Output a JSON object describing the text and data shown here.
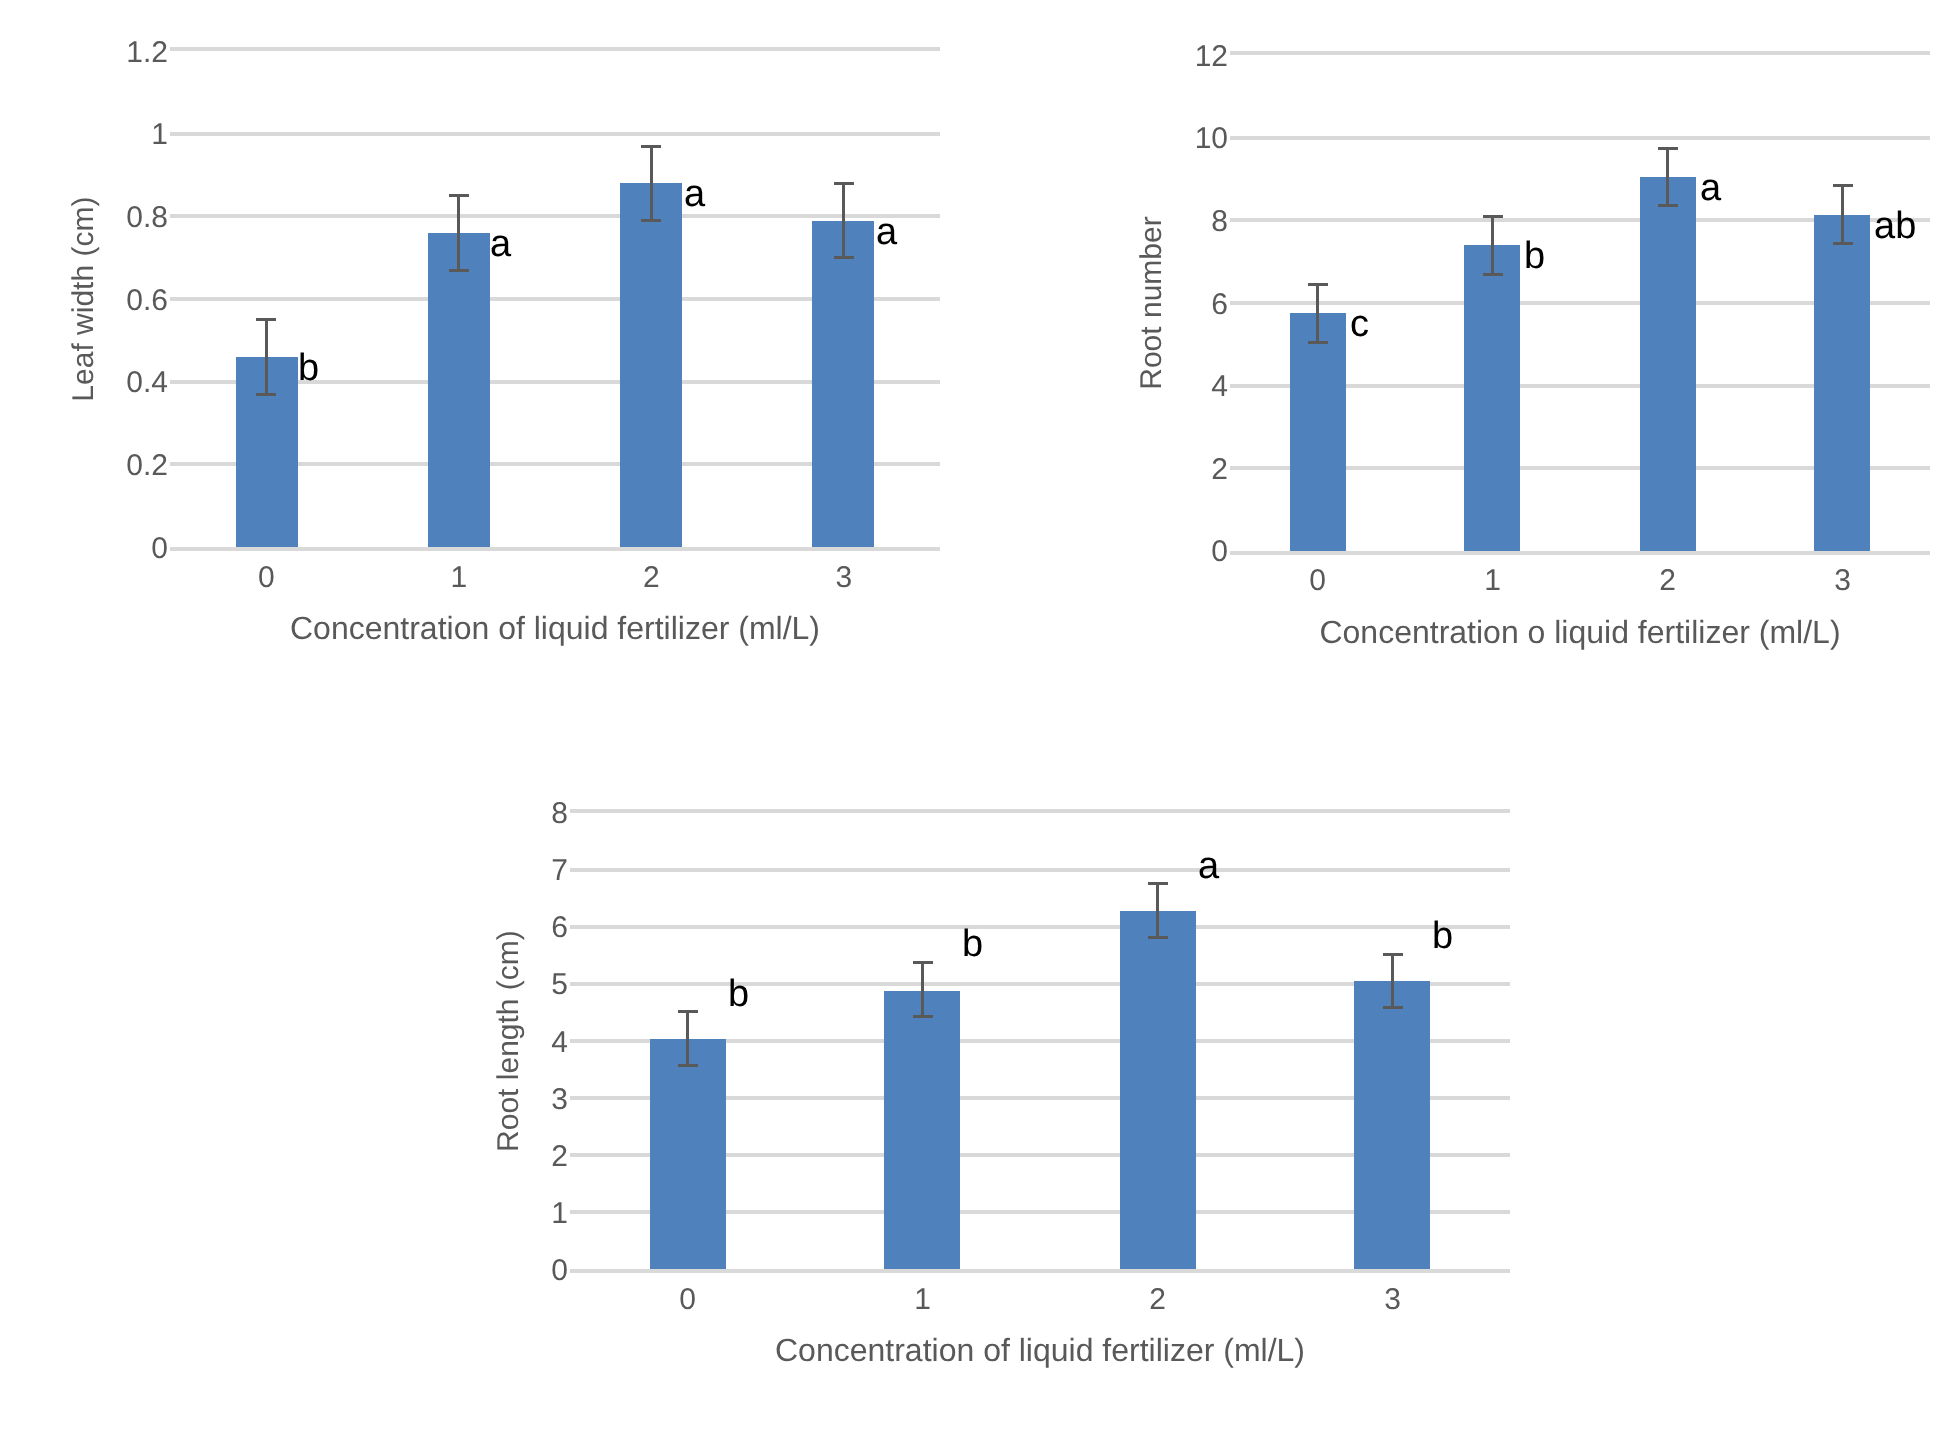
{
  "chart_data": [
    {
      "type": "bar",
      "xlabel": "Concentration of liquid fertilizer (ml/L)",
      "ylabel": "Leaf width (cm)",
      "categories": [
        "0",
        "1",
        "2",
        "3"
      ],
      "series": [
        {
          "color": "#4f81bd",
          "values": [
            0.46,
            0.76,
            0.88,
            0.79
          ],
          "errors": [
            0.09,
            0.09,
            0.09,
            0.09
          ]
        }
      ],
      "ylim": [
        0,
        1.2
      ],
      "yticks": [
        0,
        0.2,
        0.4,
        0.6,
        0.8,
        1,
        1.2
      ],
      "grid": "y",
      "annotations": [
        {
          "text": "b",
          "x": "0",
          "y": 0.46
        },
        {
          "text": "a",
          "x": "1",
          "y": 0.76
        },
        {
          "text": "a",
          "x": "2",
          "y": 0.88
        },
        {
          "text": "a",
          "x": "3",
          "y": 0.79
        }
      ]
    },
    {
      "type": "bar",
      "xlabel": "Concentration o liquid fertilizer (ml/L)",
      "ylabel": "Root number",
      "categories": [
        "0",
        "1",
        "2",
        "3"
      ],
      "series": [
        {
          "color": "#4f81bd",
          "values": [
            5.75,
            7.4,
            9.05,
            8.15
          ],
          "errors": [
            0.7,
            0.7,
            0.7,
            0.7
          ]
        }
      ],
      "ylim": [
        0,
        12
      ],
      "yticks": [
        0,
        2,
        4,
        6,
        8,
        10,
        12
      ],
      "grid": "y",
      "annotations": [
        {
          "text": "c",
          "x": "0",
          "y": 5.75
        },
        {
          "text": "b",
          "x": "1",
          "y": 7.4
        },
        {
          "text": "a",
          "x": "2",
          "y": 9.05
        },
        {
          "text": "ab",
          "x": "3",
          "y": 8.15
        }
      ]
    },
    {
      "type": "bar",
      "xlabel": "Concentration of liquid fertilizer (ml/L)",
      "ylabel": "Root length (cm)",
      "categories": [
        "0",
        "1",
        "2",
        "3"
      ],
      "series": [
        {
          "color": "#4f81bd",
          "values": [
            4.05,
            4.9,
            6.28,
            5.05
          ],
          "errors": [
            0.47,
            0.47,
            0.47,
            0.47
          ]
        }
      ],
      "ylim": [
        0,
        8
      ],
      "yticks": [
        0,
        1,
        2,
        3,
        4,
        5,
        6,
        7,
        8
      ],
      "grid": "y",
      "annotations": [
        {
          "text": "b",
          "x": "0",
          "y": 4.05
        },
        {
          "text": "b",
          "x": "1",
          "y": 4.9
        },
        {
          "text": "a",
          "x": "2",
          "y": 6.28
        },
        {
          "text": "b",
          "x": "3",
          "y": 5.05
        }
      ]
    }
  ]
}
